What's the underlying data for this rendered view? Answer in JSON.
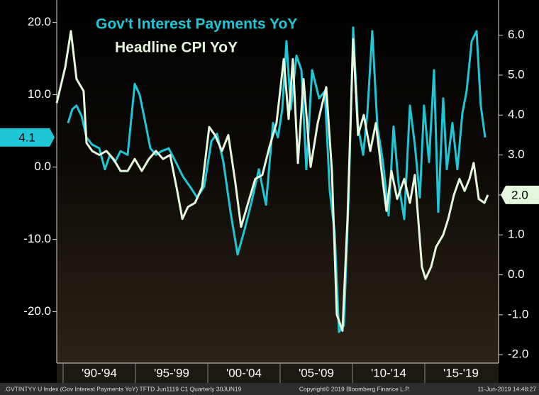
{
  "chart_data": {
    "type": "line",
    "xlim": [
      1989.56,
      2020.1
    ],
    "ylim": [
      -27.1,
      23.1
    ],
    "y2lim": [
      -2.21,
      6.88
    ],
    "yticks": [
      {
        "value": 20,
        "label": "20.0"
      },
      {
        "value": 10,
        "label": "10.0"
      },
      {
        "value": 0,
        "label": "0.0"
      },
      {
        "value": -10,
        "label": "-10.0"
      },
      {
        "value": -20,
        "label": "-20.0"
      }
    ],
    "y2ticks": [
      {
        "value": 6,
        "label": "6.0"
      },
      {
        "value": 5,
        "label": "5.0"
      },
      {
        "value": 4,
        "label": "4.0"
      },
      {
        "value": 3,
        "label": "3.0"
      },
      {
        "value": 2,
        "label": "2.0"
      },
      {
        "value": 1,
        "label": "1.0"
      },
      {
        "value": 0,
        "label": "0.0"
      },
      {
        "value": -1,
        "label": "-1.0"
      },
      {
        "value": -2,
        "label": "-2.0"
      }
    ],
    "xticks": [
      {
        "value": 1990,
        "label": "'90-'94"
      },
      {
        "value": 1995,
        "label": "'95-'99"
      },
      {
        "value": 2000,
        "label": "'00-'04"
      },
      {
        "value": 2005,
        "label": "'05-'09"
      },
      {
        "value": 2010,
        "label": "'10-'14"
      },
      {
        "value": 2015,
        "label": "'15-'19"
      }
    ],
    "series": [
      {
        "name": "Gov't Interest Payments YoY",
        "color": "#1ec6d6",
        "axis": "y",
        "last_label": "4.1",
        "x": [
          1990.34,
          1990.64,
          1990.93,
          1991.27,
          1991.62,
          1992.01,
          1992.5,
          1992.89,
          1993.24,
          1993.58,
          1993.97,
          1994.46,
          1994.95,
          1995.29,
          1995.69,
          1996.03,
          1996.42,
          1996.81,
          1997.3,
          1997.79,
          1998.28,
          1998.77,
          1999.26,
          1999.75,
          2000.25,
          2000.64,
          2001.08,
          2001.57,
          2002.06,
          2002.55,
          2003.04,
          2003.53,
          2004.02,
          2004.51,
          2004.85,
          2005.15,
          2005.44,
          2005.74,
          2006.13,
          2006.47,
          2006.81,
          2007.21,
          2007.7,
          2008.09,
          2008.43,
          2008.77,
          2009.07,
          2009.41,
          2009.75,
          2010.05,
          2010.39,
          2010.74,
          2011.03,
          2011.37,
          2011.72,
          2012.11,
          2012.5,
          2012.84,
          2013.19,
          2013.58,
          2013.97,
          2014.31,
          2014.66,
          2014.95,
          2015.29,
          2015.64,
          2015.93,
          2016.27,
          2016.52,
          2016.91,
          2017.25,
          2017.6,
          2017.89,
          2018.24,
          2018.58,
          2018.87,
          2019.17
        ],
        "values": [
          6.1,
          8.0,
          8.5,
          7.1,
          4.1,
          3.1,
          2.6,
          -0.3,
          1.7,
          0.7,
          2.2,
          1.7,
          11.5,
          10.0,
          6.1,
          2.6,
          1.7,
          2.2,
          2.6,
          0.7,
          -1.3,
          -2.7,
          -4.2,
          -2.7,
          3.6,
          4.6,
          0.7,
          -6.2,
          -12.1,
          -8.6,
          -4.7,
          -0.3,
          -5.2,
          6.1,
          4.1,
          8.0,
          17.4,
          8.0,
          15.4,
          13.4,
          -0.3,
          13.4,
          9.5,
          10.5,
          -3.2,
          -9.1,
          -22.8,
          -21.9,
          -3.2,
          19.3,
          5.6,
          1.7,
          7.5,
          18.8,
          5.6,
          0.7,
          -6.7,
          5.6,
          -2.3,
          -7.2,
          8.5,
          3.1,
          -4.2,
          8.5,
          0.7,
          13.4,
          -6.2,
          9.5,
          -0.3,
          6.1,
          -0.3,
          7.5,
          10.5,
          17.4,
          18.8,
          8.5,
          4.1
        ]
      },
      {
        "name": "Headline CPI YoY",
        "color": "#e4f6dc",
        "axis": "y2",
        "last_label": "2.0",
        "x": [
          1989.56,
          1990.15,
          1990.54,
          1990.93,
          1991.42,
          1991.62,
          1992.01,
          1992.5,
          1992.99,
          1993.48,
          1993.97,
          1994.46,
          1994.95,
          1995.44,
          1995.93,
          1996.42,
          1996.91,
          1997.4,
          1997.89,
          1998.24,
          1998.63,
          1999.12,
          1999.61,
          2000.1,
          2000.49,
          2000.98,
          2001.42,
          2001.91,
          2002.3,
          2002.79,
          2003.28,
          2003.77,
          2004.26,
          2004.75,
          2005.25,
          2005.59,
          2005.88,
          2006.23,
          2006.62,
          2007.11,
          2007.6,
          2008.19,
          2008.58,
          2008.92,
          2009.31,
          2009.66,
          2010.05,
          2010.39,
          2010.78,
          2011.23,
          2011.62,
          2012.01,
          2012.35,
          2012.7,
          2013.09,
          2013.58,
          2013.97,
          2014.31,
          2014.8,
          2015.05,
          2015.44,
          2015.78,
          2016.27,
          2016.62,
          2017.01,
          2017.4,
          2017.75,
          2018.09,
          2018.38,
          2018.73,
          2019.12,
          2019.36
        ],
        "values": [
          4.3,
          5.2,
          6.1,
          4.9,
          4.6,
          3.3,
          3.1,
          3.0,
          3.1,
          2.9,
          2.6,
          2.6,
          2.9,
          2.6,
          2.9,
          3.1,
          2.9,
          3.0,
          2.1,
          1.4,
          1.7,
          1.8,
          2.2,
          3.7,
          3.5,
          3.1,
          3.5,
          2.3,
          1.2,
          1.8,
          2.4,
          2.5,
          3.2,
          3.8,
          5.4,
          3.9,
          5.4,
          2.8,
          4.9,
          2.7,
          3.8,
          4.7,
          2.6,
          -1.0,
          -1.4,
          1.4,
          5.9,
          3.5,
          4.0,
          3.1,
          3.8,
          2.6,
          1.6,
          2.6,
          1.9,
          2.4,
          1.8,
          2.5,
          0.2,
          -0.1,
          0.2,
          0.7,
          1.0,
          1.4,
          2.0,
          2.4,
          2.1,
          2.4,
          2.8,
          1.9,
          1.8,
          2.0
        ]
      }
    ],
    "footer": {
      "left": ".GVTINTYY U Index (Gov Interest Payments YoY) TFTD Jun1119 C1  Quarterly 30JUN19",
      "center": "Copyright© 2019 Bloomberg Finance L.P.",
      "right": "11-Jun-2019 14:48:27"
    }
  }
}
